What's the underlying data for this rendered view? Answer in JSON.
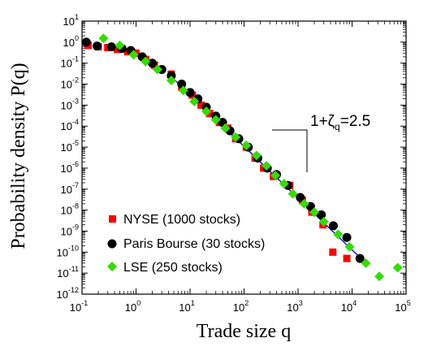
{
  "chart_data": {
    "type": "scatter",
    "title": "",
    "xlabel": "Trade size q",
    "ylabel": "Probability density P(q)",
    "x_scale": "log",
    "y_scale": "log",
    "xlim": [
      0.1,
      100000
    ],
    "ylim": [
      1e-12,
      10
    ],
    "x_ticks": [
      {
        "base": "10",
        "exp": "-1",
        "value": 0.1
      },
      {
        "base": "10",
        "exp": "0",
        "value": 1
      },
      {
        "base": "10",
        "exp": "1",
        "value": 10
      },
      {
        "base": "10",
        "exp": "2",
        "value": 100
      },
      {
        "base": "10",
        "exp": "3",
        "value": 1000
      },
      {
        "base": "10",
        "exp": "4",
        "value": 10000
      },
      {
        "base": "10",
        "exp": "5",
        "value": 100000
      }
    ],
    "y_ticks": [
      {
        "base": "10",
        "exp": "1",
        "value": 10
      },
      {
        "base": "10",
        "exp": "0",
        "value": 1
      },
      {
        "base": "10",
        "exp": "-1",
        "value": 0.1
      },
      {
        "base": "10",
        "exp": "-2",
        "value": 0.01
      },
      {
        "base": "10",
        "exp": "-3",
        "value": 0.001
      },
      {
        "base": "10",
        "exp": "-4",
        "value": 0.0001
      },
      {
        "base": "10",
        "exp": "-5",
        "value": 1e-05
      },
      {
        "base": "10",
        "exp": "-6",
        "value": 1e-06
      },
      {
        "base": "10",
        "exp": "-7",
        "value": 1e-07
      },
      {
        "base": "10",
        "exp": "-8",
        "value": 1e-08
      },
      {
        "base": "10",
        "exp": "-9",
        "value": 1e-09
      },
      {
        "base": "10",
        "exp": "-10",
        "value": 1e-10
      },
      {
        "base": "10",
        "exp": "-11",
        "value": 1e-11
      },
      {
        "base": "10",
        "exp": "-12",
        "value": 1e-12
      }
    ],
    "grid": false,
    "legend_position": "bottom-left",
    "series": [
      {
        "name": "NYSE (1000 stocks)",
        "marker": "square",
        "color": "#ff0000",
        "points": [
          [
            0.13,
            0.7
          ],
          [
            0.2,
            0.6
          ],
          [
            0.3,
            0.55
          ],
          [
            0.45,
            0.45
          ],
          [
            0.7,
            0.35
          ],
          [
            1.0,
            0.3
          ],
          [
            1.5,
            0.15
          ],
          [
            2.2,
            0.08
          ],
          [
            4.5,
            0.03
          ],
          [
            7.0,
            0.007
          ],
          [
            11,
            0.003
          ],
          [
            16,
            0.001
          ],
          [
            23,
            0.0004
          ],
          [
            35,
            0.00015
          ],
          [
            50,
            8e-05
          ],
          [
            70,
            2.5e-05
          ],
          [
            110,
            1e-05
          ],
          [
            160,
            3e-06
          ],
          [
            230,
            1e-06
          ],
          [
            350,
            4e-07
          ],
          [
            700,
            1.5e-07
          ],
          [
            1200,
            3e-08
          ],
          [
            1800,
            8e-09
          ],
          [
            2900,
            2e-09
          ],
          [
            4400,
            1e-10
          ],
          [
            8000,
            5e-11
          ]
        ]
      },
      {
        "name": "Paris Bourse (30 stocks)",
        "marker": "circle",
        "color": "#000000",
        "points": [
          [
            0.12,
            1.0
          ],
          [
            0.19,
            0.65
          ],
          [
            0.35,
            0.6
          ],
          [
            0.55,
            0.5
          ],
          [
            0.8,
            0.4
          ],
          [
            1.3,
            0.2
          ],
          [
            2.0,
            0.1
          ],
          [
            3.0,
            0.05
          ],
          [
            4.5,
            0.025
          ],
          [
            7.0,
            0.01
          ],
          [
            10,
            0.004
          ],
          [
            14,
            0.002
          ],
          [
            20,
            0.0008
          ],
          [
            30,
            0.0003
          ],
          [
            40,
            0.00015
          ],
          [
            55,
            6e-05
          ],
          [
            80,
            2.5e-05
          ],
          [
            120,
            1e-05
          ],
          [
            180,
            3e-06
          ],
          [
            270,
            1e-06
          ],
          [
            400,
            5e-07
          ],
          [
            650,
            1.5e-07
          ],
          [
            1100,
            4e-08
          ],
          [
            1700,
            1.5e-08
          ],
          [
            2700,
            6e-09
          ],
          [
            4500,
            1.8e-09
          ],
          [
            8000,
            5e-10
          ],
          [
            14000,
            5e-11
          ]
        ]
      },
      {
        "name": "LSE (250 stocks)",
        "marker": "diamond",
        "color": "#33dd00",
        "points": [
          [
            0.25,
            1.5
          ],
          [
            0.5,
            0.7
          ],
          [
            0.9,
            0.25
          ],
          [
            1.5,
            0.12
          ],
          [
            2.5,
            0.05
          ],
          [
            4.5,
            0.015
          ],
          [
            7.5,
            0.005
          ],
          [
            12,
            0.0015
          ],
          [
            20,
            0.0005
          ],
          [
            30,
            0.0002
          ],
          [
            45,
            8e-05
          ],
          [
            70,
            3e-05
          ],
          [
            110,
            1.2e-05
          ],
          [
            170,
            4e-06
          ],
          [
            260,
            1.3e-06
          ],
          [
            380,
            4.5e-07
          ],
          [
            550,
            1.8e-07
          ],
          [
            800,
            6e-08
          ],
          [
            1300,
            2e-08
          ],
          [
            2000,
            8e-09
          ],
          [
            3000,
            2.8e-09
          ],
          [
            5500,
            7e-10
          ],
          [
            9000,
            1.8e-10
          ],
          [
            18000,
            3e-11
          ],
          [
            32000,
            7e-12
          ],
          [
            70000,
            1.8e-11
          ]
        ]
      }
    ],
    "fit_line": {
      "color": "#0000cc",
      "points": [
        [
          4,
          0.03
        ],
        [
          18000,
          3e-11
        ]
      ]
    },
    "annotation": {
      "text_main": "1+ζ",
      "text_sub": "q",
      "text_value": "=2.5"
    }
  }
}
